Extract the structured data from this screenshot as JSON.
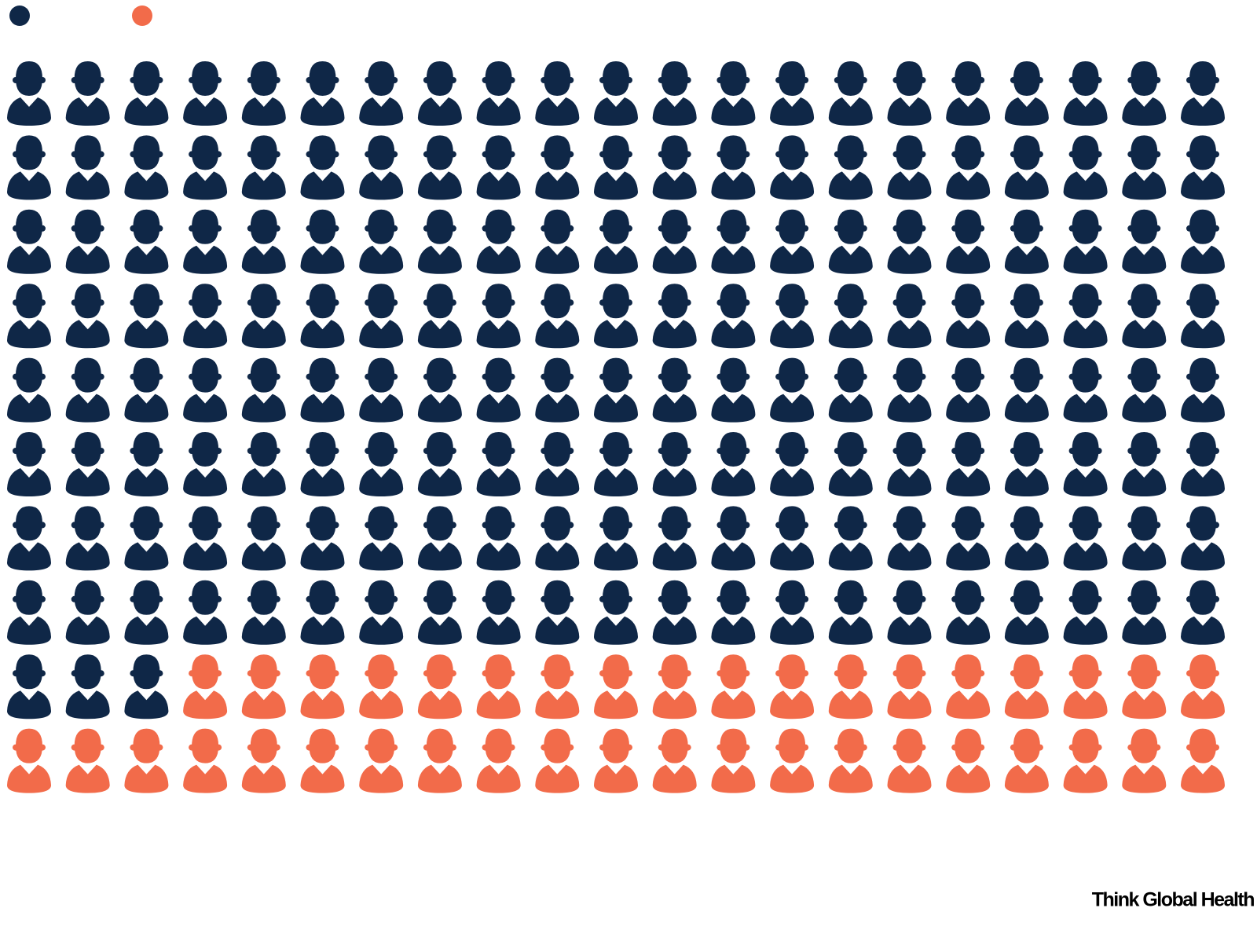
{
  "chart_data": {
    "type": "pictogram",
    "series": [
      {
        "color": "#0f2747",
        "values": [
          171
        ]
      },
      {
        "color": "#f26b4a",
        "values": [
          39
        ]
      }
    ],
    "source": "Think Global Health"
  }
}
